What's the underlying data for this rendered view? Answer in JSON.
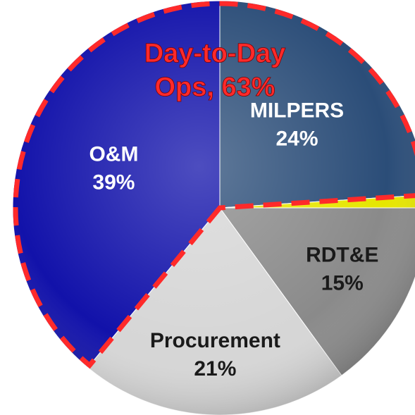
{
  "chart_data": {
    "type": "pie",
    "categories": [
      "MILPERS",
      null,
      "RDT&E",
      "Procurement",
      "O&M"
    ],
    "values": [
      24,
      1,
      15,
      21,
      39
    ],
    "value_labels": [
      "24%",
      null,
      "15%",
      "21%",
      "39%"
    ],
    "colors": [
      "#2b4d78",
      "#e6e600",
      "#8a8a8a",
      "#d6d6d6",
      "#1212aa"
    ],
    "label_colors": [
      "#ffffff",
      "#ffffff",
      "#1a1a1a",
      "#1a1a1a",
      "#ffffff"
    ],
    "annotation": [
      "Day-to-Day",
      "Ops, 63%"
    ],
    "annotation_color": "#ff2a2a"
  }
}
